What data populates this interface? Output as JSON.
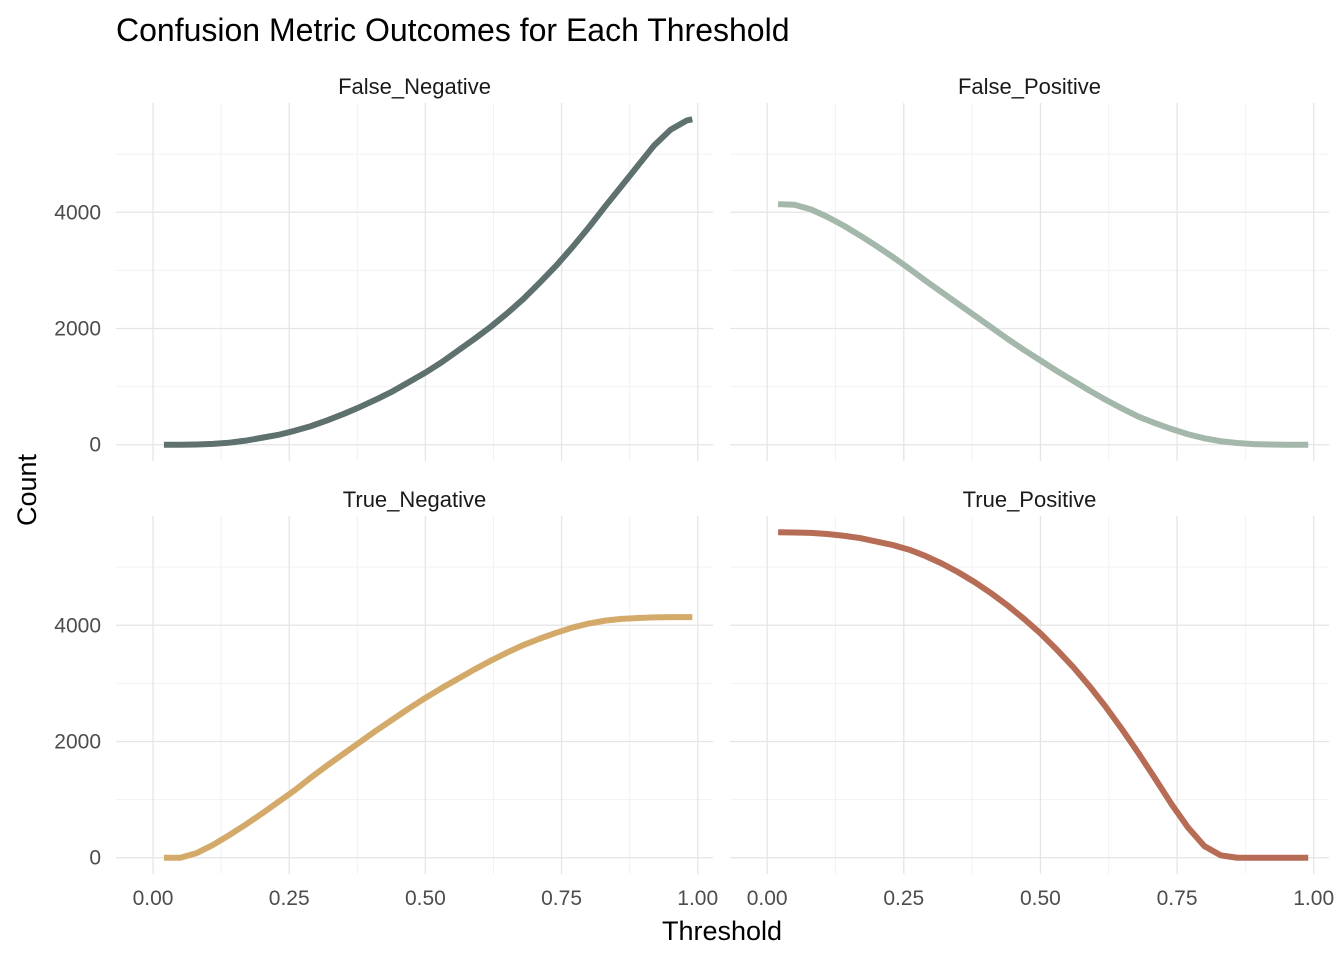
{
  "chart_data": {
    "type": "line",
    "title": "Confusion Metric Outcomes for Each Threshold",
    "xlabel": "Threshold",
    "ylabel": "Count",
    "xlim": [
      0,
      1
    ],
    "ylim": [
      0,
      5600
    ],
    "x_ticks": [
      "0.00",
      "0.25",
      "0.50",
      "0.75",
      "1.00"
    ],
    "y_ticks": [
      "0",
      "2000",
      "4000"
    ],
    "grid": true,
    "legend": "none",
    "x": [
      0.02,
      0.05,
      0.08,
      0.11,
      0.14,
      0.17,
      0.2,
      0.23,
      0.26,
      0.29,
      0.32,
      0.35,
      0.38,
      0.41,
      0.44,
      0.47,
      0.5,
      0.53,
      0.56,
      0.59,
      0.62,
      0.65,
      0.68,
      0.71,
      0.74,
      0.77,
      0.8,
      0.83,
      0.86,
      0.89,
      0.92,
      0.95,
      0.98,
      0.99
    ],
    "series": [
      {
        "name": "False_Negative",
        "color": "#5e716f",
        "values": [
          0,
          0,
          5,
          15,
          35,
          70,
          120,
          170,
          240,
          320,
          420,
          530,
          650,
          780,
          920,
          1080,
          1240,
          1420,
          1620,
          1820,
          2030,
          2260,
          2510,
          2790,
          3080,
          3400,
          3740,
          4100,
          4450,
          4800,
          5150,
          5420,
          5580,
          5600
        ]
      },
      {
        "name": "False_Positive",
        "color": "#a3b8aa",
        "values": [
          4140,
          4130,
          4050,
          3920,
          3770,
          3600,
          3420,
          3230,
          3030,
          2820,
          2620,
          2420,
          2220,
          2020,
          1820,
          1630,
          1450,
          1270,
          1100,
          930,
          770,
          620,
          480,
          370,
          270,
          180,
          110,
          60,
          30,
          10,
          5,
          0,
          0,
          0
        ]
      },
      {
        "name": "True_Negative",
        "color": "#d4aa6a",
        "values": [
          0,
          0,
          80,
          220,
          390,
          570,
          760,
          960,
          1160,
          1380,
          1590,
          1790,
          1990,
          2190,
          2380,
          2570,
          2750,
          2920,
          3080,
          3240,
          3390,
          3530,
          3660,
          3770,
          3870,
          3960,
          4030,
          4080,
          4110,
          4125,
          4135,
          4140,
          4140,
          4140
        ]
      },
      {
        "name": "True_Positive",
        "color": "#b76d55",
        "values": [
          5600,
          5595,
          5590,
          5570,
          5540,
          5500,
          5440,
          5380,
          5300,
          5190,
          5060,
          4910,
          4740,
          4550,
          4340,
          4110,
          3860,
          3580,
          3280,
          2950,
          2590,
          2200,
          1790,
          1360,
          920,
          520,
          200,
          40,
          0,
          0,
          0,
          0,
          0,
          0
        ]
      }
    ]
  }
}
